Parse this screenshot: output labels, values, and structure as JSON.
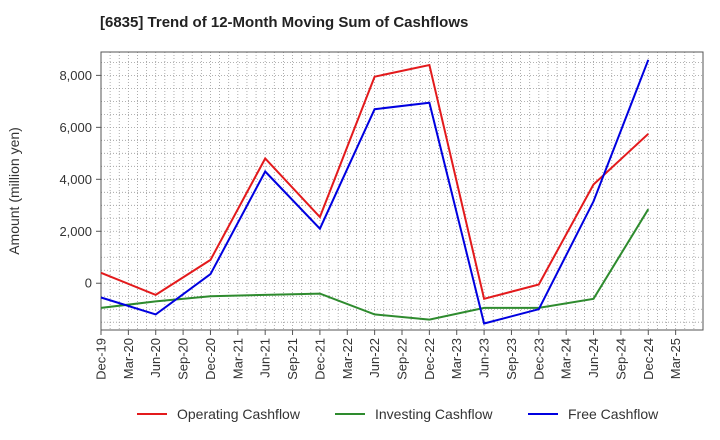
{
  "chart_data": {
    "type": "line",
    "title": "[6835]  Trend of 12-Month Moving Sum of Cashflows",
    "xlabel": "",
    "ylabel": "Amount (million yen)",
    "x": [
      "Dec-19",
      "Jun-20",
      "Dec-20",
      "Jun-21",
      "Dec-21",
      "Jun-22",
      "Dec-22",
      "Jun-23",
      "Dec-23",
      "Jun-24",
      "Dec-24"
    ],
    "x_ticks": [
      "Dec-19",
      "Mar-20",
      "Jun-20",
      "Sep-20",
      "Dec-20",
      "Mar-21",
      "Jun-21",
      "Sep-21",
      "Dec-21",
      "Mar-22",
      "Jun-22",
      "Sep-22",
      "Dec-22",
      "Mar-23",
      "Jun-23",
      "Sep-23",
      "Dec-23",
      "Mar-24",
      "Jun-24",
      "Sep-24",
      "Dec-24",
      "Mar-25"
    ],
    "y_ticks": [
      0,
      2000,
      4000,
      6000,
      8000
    ],
    "y_tick_labels": [
      "0",
      "2,000",
      "4,000",
      "6,000",
      "8,000"
    ],
    "ylim": [
      -1800,
      8900
    ],
    "grid": true,
    "legend_position": "bottom",
    "series": [
      {
        "name": "Operating Cashflow",
        "color": "#e31a1c",
        "values": [
          400,
          -450,
          900,
          4800,
          2550,
          7950,
          8400,
          -600,
          -50,
          3800,
          5750
        ]
      },
      {
        "name": "Investing Cashflow",
        "color": "#2e8b2e",
        "values": [
          -950,
          -700,
          -500,
          -450,
          -400,
          -1200,
          -1400,
          -950,
          -950,
          -600,
          2850
        ]
      },
      {
        "name": "Free Cashflow",
        "color": "#0000e0",
        "values": [
          -550,
          -1200,
          350,
          4300,
          2100,
          6700,
          6950,
          -1550,
          -1000,
          3150,
          8600
        ]
      }
    ]
  }
}
